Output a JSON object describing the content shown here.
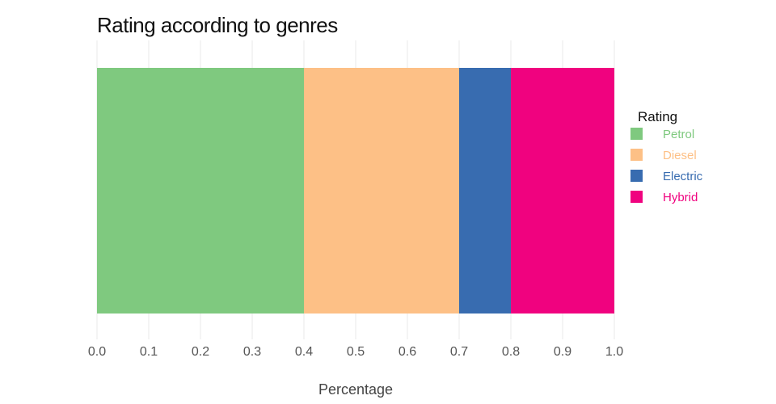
{
  "chart_data": {
    "type": "bar",
    "orientation": "horizontal",
    "stacked": true,
    "title": "Rating according to genres",
    "xlabel": "Percentage",
    "ylabel": "",
    "xlim": [
      0.0,
      1.0
    ],
    "x_ticks": [
      "0.0",
      "0.1",
      "0.2",
      "0.3",
      "0.4",
      "0.5",
      "0.6",
      "0.7",
      "0.8",
      "0.9",
      "1.0"
    ],
    "grid": true,
    "legend": {
      "title": "Rating",
      "placement": "right"
    },
    "series": [
      {
        "name": "Petrol",
        "value": 0.4,
        "color": "#7fc97f"
      },
      {
        "name": "Diesel",
        "value": 0.3,
        "color": "#fdc086"
      },
      {
        "name": "Electric",
        "value": 0.1,
        "color": "#386cb0"
      },
      {
        "name": "Hybrid",
        "value": 0.2,
        "color": "#f0027f"
      }
    ]
  }
}
